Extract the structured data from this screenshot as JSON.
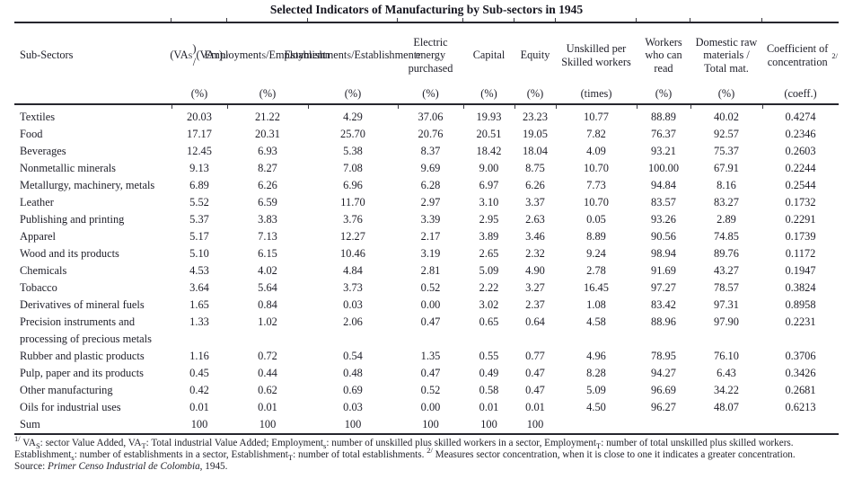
{
  "title": "Selected Indicators of Manufacturing by Sub-sectors in 1945",
  "table": {
    "columns": [
      {
        "key": "subsectors",
        "unit": "",
        "label_segments": [
          [
            "t",
            "Sub-Sectors"
          ]
        ]
      },
      {
        "key": "value-added-share",
        "unit": "(%)",
        "label_segments": [
          [
            "t",
            "(VA"
          ],
          [
            "sub",
            "S"
          ],
          [
            "t",
            ") /"
          ],
          [
            "nl",
            ""
          ],
          [
            "t",
            "(VA"
          ],
          [
            "sub",
            "T"
          ],
          [
            "t",
            ")"
          ],
          [
            "sup",
            "1/"
          ]
        ]
      },
      {
        "key": "employment-share",
        "unit": "(%)",
        "label_segments": [
          [
            "t",
            "Employment"
          ],
          [
            "sub",
            "S"
          ],
          [
            "t",
            "/"
          ],
          [
            "nl",
            ""
          ],
          [
            "t",
            "Employment"
          ],
          [
            "sub",
            "T"
          ]
        ]
      },
      {
        "key": "establishment-share",
        "unit": "(%)",
        "label_segments": [
          [
            "t",
            "Establishment"
          ],
          [
            "sub",
            "S"
          ],
          [
            "t",
            " /"
          ],
          [
            "nl",
            ""
          ],
          [
            "t",
            "Establishment"
          ],
          [
            "sub",
            "T"
          ]
        ]
      },
      {
        "key": "electric-energy",
        "unit": "(%)",
        "label_segments": [
          [
            "t",
            "Electric energy purchased"
          ]
        ]
      },
      {
        "key": "capital",
        "unit": "(%)",
        "label_segments": [
          [
            "t",
            "Capital"
          ]
        ]
      },
      {
        "key": "equity",
        "unit": "(%)",
        "label_segments": [
          [
            "t",
            "Equity"
          ]
        ]
      },
      {
        "key": "unskilled-per-skilled",
        "unit": "(times)",
        "label_segments": [
          [
            "t",
            "Unskilled per Skilled workers"
          ]
        ]
      },
      {
        "key": "workers-who-can-read",
        "unit": "(%)",
        "label_segments": [
          [
            "t",
            "Workers who can read"
          ]
        ]
      },
      {
        "key": "domestic-raw-materials",
        "unit": "(%)",
        "label_segments": [
          [
            "t",
            "Domestic raw materials / Total mat."
          ]
        ]
      },
      {
        "key": "coefficient-of-concentration",
        "unit": "(coeff.)",
        "label_segments": [
          [
            "t",
            "Coefficient of concentration "
          ],
          [
            "sup",
            "2/"
          ]
        ]
      }
    ],
    "rows": [
      {
        "name": "Textiles",
        "values": [
          "20.03",
          "21.22",
          "4.29",
          "37.06",
          "19.93",
          "23.23",
          "10.77",
          "88.89",
          "40.02",
          "0.4274"
        ]
      },
      {
        "name": "Food",
        "values": [
          "17.17",
          "20.31",
          "25.70",
          "20.76",
          "20.51",
          "19.05",
          "7.82",
          "76.37",
          "92.57",
          "0.2346"
        ]
      },
      {
        "name": "Beverages",
        "values": [
          "12.45",
          "6.93",
          "5.38",
          "8.37",
          "18.42",
          "18.04",
          "4.09",
          "93.21",
          "75.37",
          "0.2603"
        ]
      },
      {
        "name": "Nonmetallic minerals",
        "values": [
          "9.13",
          "8.27",
          "7.08",
          "9.69",
          "9.00",
          "8.75",
          "10.70",
          "100.00",
          "67.91",
          "0.2244"
        ]
      },
      {
        "name": "Metallurgy, machinery, metals",
        "values": [
          "6.89",
          "6.26",
          "6.96",
          "6.28",
          "6.97",
          "6.26",
          "7.73",
          "94.84",
          "8.16",
          "0.2544"
        ]
      },
      {
        "name": "Leather",
        "values": [
          "5.52",
          "6.59",
          "11.70",
          "2.97",
          "3.10",
          "3.37",
          "10.70",
          "83.57",
          "83.27",
          "0.1732"
        ]
      },
      {
        "name": "Publishing and printing",
        "values": [
          "5.37",
          "3.83",
          "3.76",
          "3.39",
          "2.95",
          "2.63",
          "0.05",
          "93.26",
          "2.89",
          "0.2291"
        ]
      },
      {
        "name": "Apparel",
        "values": [
          "5.17",
          "7.13",
          "12.27",
          "2.17",
          "3.89",
          "3.46",
          "8.89",
          "90.56",
          "74.85",
          "0.1739"
        ]
      },
      {
        "name": "Wood and its products",
        "values": [
          "5.10",
          "6.15",
          "10.46",
          "3.19",
          "2.65",
          "2.32",
          "9.24",
          "98.94",
          "89.76",
          "0.1172"
        ]
      },
      {
        "name": "Chemicals",
        "values": [
          "4.53",
          "4.02",
          "4.84",
          "2.81",
          "5.09",
          "4.90",
          "2.78",
          "91.69",
          "43.27",
          "0.1947"
        ]
      },
      {
        "name": "Tobacco",
        "values": [
          "3.64",
          "5.64",
          "3.73",
          "0.52",
          "2.22",
          "3.27",
          "16.45",
          "97.27",
          "78.57",
          "0.3824"
        ]
      },
      {
        "name": "Derivatives of mineral fuels",
        "values": [
          "1.65",
          "0.84",
          "0.03",
          "0.00",
          "3.02",
          "2.37",
          "1.08",
          "83.42",
          "97.31",
          "0.8958"
        ]
      },
      {
        "name": "Precision instruments and processing of precious metals",
        "values": [
          "1.33",
          "1.02",
          "2.06",
          "0.47",
          "0.65",
          "0.64",
          "4.58",
          "88.96",
          "97.90",
          "0.2231"
        ]
      },
      {
        "name": "Rubber and plastic products",
        "values": [
          "1.16",
          "0.72",
          "0.54",
          "1.35",
          "0.55",
          "0.77",
          "4.96",
          "78.95",
          "76.10",
          "0.3706"
        ]
      },
      {
        "name": "Pulp, paper and its products",
        "values": [
          "0.45",
          "0.44",
          "0.48",
          "0.47",
          "0.49",
          "0.47",
          "8.28",
          "94.27",
          "6.43",
          "0.3426"
        ]
      },
      {
        "name": "Other manufacturing",
        "values": [
          "0.42",
          "0.62",
          "0.69",
          "0.52",
          "0.58",
          "0.47",
          "5.09",
          "96.69",
          "34.22",
          "0.2681"
        ]
      },
      {
        "name": "Oils for industrial uses",
        "values": [
          "0.01",
          "0.01",
          "0.03",
          "0.00",
          "0.01",
          "0.01",
          "4.50",
          "96.27",
          "48.07",
          "0.6213"
        ]
      },
      {
        "name": "Sum",
        "values": [
          "100",
          "100",
          "100",
          "100",
          "100",
          "100",
          "",
          "",
          "",
          ""
        ]
      }
    ]
  },
  "footnotes": {
    "note_segments": [
      [
        "sup",
        "1/"
      ],
      [
        "t",
        " VA"
      ],
      [
        "sub",
        "S"
      ],
      [
        "t",
        ": sector Value Added, VA"
      ],
      [
        "sub",
        "T"
      ],
      [
        "t",
        ": Total industrial Value Added; Employment"
      ],
      [
        "sub",
        "s"
      ],
      [
        "t",
        ": number of unskilled plus skilled workers in a sector, Employment"
      ],
      [
        "sub",
        "T"
      ],
      [
        "t",
        ": number of total unskilled plus skilled workers. Establishment"
      ],
      [
        "sub",
        "s"
      ],
      [
        "t",
        ": number of establishments in a sector, Establishment"
      ],
      [
        "sub",
        "T"
      ],
      [
        "t",
        ": number of total establishments. "
      ],
      [
        "sup",
        "2/"
      ],
      [
        "t",
        " Measures sector concentration, when it is close to one it indicates a greater concentration."
      ]
    ],
    "source_segments": [
      [
        "t",
        "Source: "
      ],
      [
        "i",
        "Primer Censo Industrial de Colombia"
      ],
      [
        "t",
        ", 1945."
      ]
    ]
  }
}
